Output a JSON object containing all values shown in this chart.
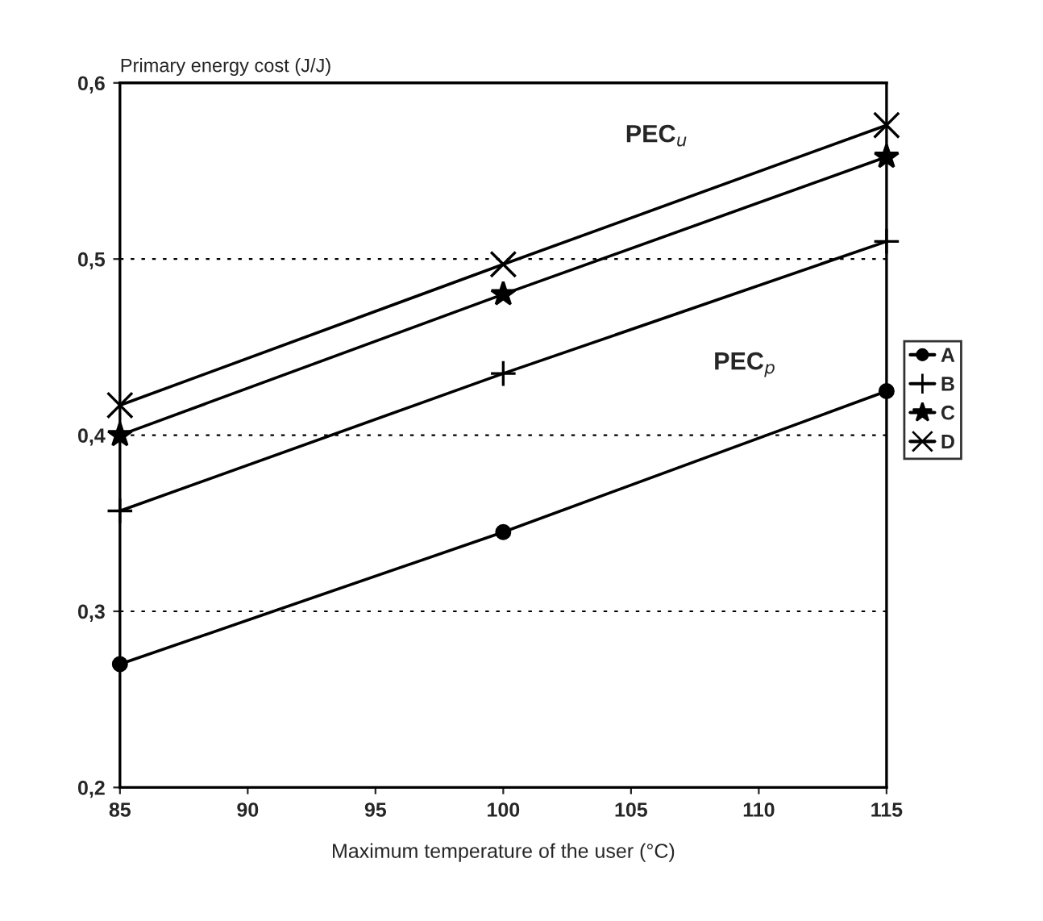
{
  "chart_data": {
    "type": "line",
    "ylabel": "Primary energy cost (J/J)",
    "xlabel": "Maximum temperature of the user (°C)",
    "x": [
      85,
      100,
      115
    ],
    "series": [
      {
        "name": "A",
        "color": "#000000",
        "marker": "circle",
        "values": [
          0.27,
          0.345,
          0.425
        ]
      },
      {
        "name": "B",
        "color": "#000000",
        "marker": "plus",
        "values": [
          0.357,
          0.435,
          0.51
        ]
      },
      {
        "name": "C",
        "color": "#000000",
        "marker": "star",
        "values": [
          0.4,
          0.48,
          0.558
        ]
      },
      {
        "name": "D",
        "color": "#000000",
        "marker": "cross",
        "values": [
          0.417,
          0.497,
          0.576
        ]
      }
    ],
    "annotations": [
      "PEC$_{u}$",
      "PEC$_{p}$"
    ],
    "xlim": [
      85,
      115
    ],
    "xticks": [
      85,
      90,
      95,
      100,
      105,
      110,
      115
    ],
    "ylim": [
      0.2,
      0.6
    ],
    "yticks": [
      {
        "value": 0.2,
        "label": "0,2"
      },
      {
        "value": 0.3,
        "label": "0,3"
      },
      {
        "value": 0.4,
        "label": "0,4"
      },
      {
        "value": 0.5,
        "label": "0,5"
      },
      {
        "value": 0.6,
        "label": "0,6"
      }
    ],
    "grid": "y",
    "legend": "right",
    "line_style": "solid"
  }
}
